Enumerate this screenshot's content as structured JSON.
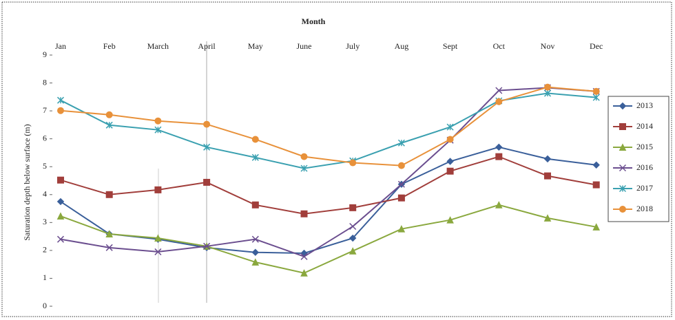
{
  "chart_data": {
    "type": "line",
    "x_title": "Month",
    "y_title": "Saturation depth below surface (m)",
    "categories": [
      "Jan",
      "Feb",
      "March",
      "April",
      "May",
      "June",
      "July",
      "Aug",
      "Sept",
      "Oct",
      "Nov",
      "Dec"
    ],
    "ylim": [
      0,
      9
    ],
    "yticks": [
      0,
      1,
      2,
      3,
      4,
      5,
      6,
      7,
      8,
      9
    ],
    "series": [
      {
        "name": "2013",
        "color": "#3a5f9a",
        "marker": "diamond",
        "values": [
          3.75,
          2.59,
          2.4,
          2.1,
          1.93,
          1.9,
          2.44,
          4.37,
          5.19,
          5.7,
          5.28,
          5.06
        ]
      },
      {
        "name": "2014",
        "color": "#a13e3b",
        "marker": "square",
        "values": [
          4.52,
          4.0,
          4.17,
          4.44,
          3.63,
          3.31,
          3.53,
          3.88,
          4.84,
          5.36,
          4.67,
          4.35
        ]
      },
      {
        "name": "2015",
        "color": "#8aa83e",
        "marker": "triangle",
        "values": [
          3.23,
          2.59,
          2.44,
          2.15,
          1.58,
          1.19,
          1.98,
          2.77,
          3.09,
          3.63,
          3.16,
          2.84
        ]
      },
      {
        "name": "2016",
        "color": "#6b4e8f",
        "marker": "x",
        "values": [
          2.4,
          2.1,
          1.95,
          2.15,
          2.4,
          1.78,
          2.86,
          4.37,
          5.95,
          7.73,
          7.83,
          7.7
        ]
      },
      {
        "name": "2017",
        "color": "#3aa0b0",
        "marker": "star",
        "values": [
          7.38,
          6.49,
          6.32,
          5.7,
          5.33,
          4.94,
          5.21,
          5.85,
          6.42,
          7.36,
          7.63,
          7.48
        ]
      },
      {
        "name": "2018",
        "color": "#e8913a",
        "marker": "circle",
        "values": [
          7.01,
          6.86,
          6.64,
          6.52,
          5.98,
          5.36,
          5.14,
          5.04,
          5.98,
          7.33,
          7.85,
          7.7
        ]
      }
    ],
    "legend": "right"
  }
}
